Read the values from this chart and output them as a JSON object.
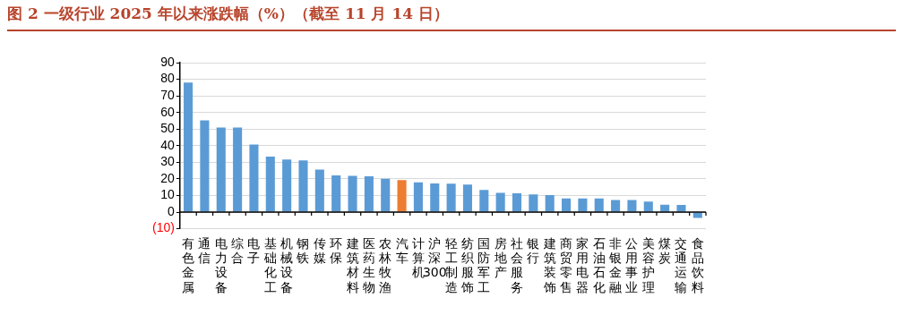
{
  "chart_data": {
    "type": "bar",
    "title": "图 2 一级行业 2025 年以来涨跌幅（%）（截至 11 月 14 日）",
    "categories": [
      "有色金属",
      "通信",
      "电力设备",
      "综合",
      "电子",
      "基础化工",
      "机械设备",
      "钢铁",
      "传媒",
      "环保",
      "建筑材料",
      "医药生物",
      "农林牧渔",
      "汽车",
      "计算机",
      "沪深300",
      "轻工制造",
      "纺织服饰",
      "国防军工",
      "房地产",
      "社会服务",
      "银行",
      "建筑装饰",
      "商贸零售",
      "家用电器",
      "石油石化",
      "非银金融",
      "公用事业",
      "美容护理",
      "煤炭",
      "交通运输",
      "食品饮料"
    ],
    "values": [
      78,
      55.3,
      51,
      51,
      40.7,
      33.4,
      31.7,
      31.2,
      25.6,
      22.1,
      21.9,
      21.6,
      20.1,
      19.3,
      18,
      17.3,
      17.1,
      16.6,
      13.3,
      11.6,
      11.3,
      10.6,
      10.3,
      8.3,
      8.3,
      8.3,
      7.3,
      7.3,
      6.3,
      4.5,
      4.3,
      -3.5
    ],
    "colors": [
      "#5b9bd5",
      "#5b9bd5",
      "#5b9bd5",
      "#5b9bd5",
      "#5b9bd5",
      "#5b9bd5",
      "#5b9bd5",
      "#5b9bd5",
      "#5b9bd5",
      "#5b9bd5",
      "#5b9bd5",
      "#5b9bd5",
      "#5b9bd5",
      "#ed7d31",
      "#5b9bd5",
      "#5b9bd5",
      "#5b9bd5",
      "#5b9bd5",
      "#5b9bd5",
      "#5b9bd5",
      "#5b9bd5",
      "#5b9bd5",
      "#5b9bd5",
      "#5b9bd5",
      "#5b9bd5",
      "#5b9bd5",
      "#5b9bd5",
      "#5b9bd5",
      "#5b9bd5",
      "#5b9bd5",
      "#5b9bd5",
      "#5b9bd5"
    ],
    "ylim": [
      -10,
      90
    ],
    "yticks": [
      {
        "value": -10,
        "label": "(10)"
      },
      0,
      10,
      20,
      30,
      40,
      50,
      60,
      70,
      80,
      90
    ],
    "grid": "y"
  }
}
